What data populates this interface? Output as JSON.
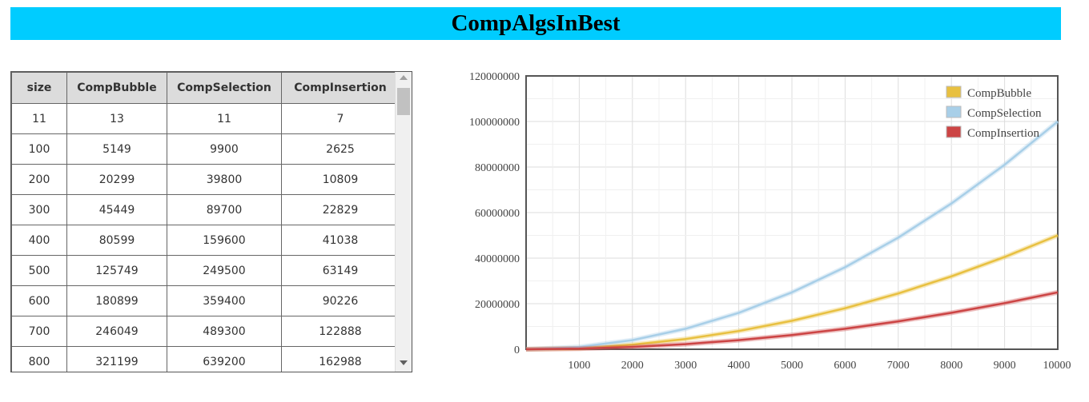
{
  "header": {
    "title": "CompAlgsInBest"
  },
  "table": {
    "columns": [
      "size",
      "CompBubble",
      "CompSelection",
      "CompInsertion"
    ],
    "rows": [
      [
        "11",
        "13",
        "11",
        "7"
      ],
      [
        "100",
        "5149",
        "9900",
        "2625"
      ],
      [
        "200",
        "20299",
        "39800",
        "10809"
      ],
      [
        "300",
        "45449",
        "89700",
        "22829"
      ],
      [
        "400",
        "80599",
        "159600",
        "41038"
      ],
      [
        "500",
        "125749",
        "249500",
        "63149"
      ],
      [
        "600",
        "180899",
        "359400",
        "90226"
      ],
      [
        "700",
        "246049",
        "489300",
        "122888"
      ],
      [
        "800",
        "321199",
        "639200",
        "162988"
      ]
    ]
  },
  "chart_data": {
    "type": "line",
    "title": "",
    "xlabel": "",
    "ylabel": "",
    "xlim": [
      0,
      10000
    ],
    "ylim": [
      0,
      120000000
    ],
    "x_ticks": [
      1000,
      2000,
      3000,
      4000,
      5000,
      6000,
      7000,
      8000,
      9000,
      10000
    ],
    "y_ticks": [
      0,
      20000000,
      40000000,
      60000000,
      80000000,
      100000000,
      120000000
    ],
    "grid": true,
    "legend_position": "top-right",
    "x": [
      0,
      1000,
      2000,
      3000,
      4000,
      5000,
      6000,
      7000,
      8000,
      9000,
      10000
    ],
    "series": [
      {
        "name": "CompBubble",
        "color": "#e8c040",
        "values": [
          0,
          500000,
          2000000,
          4500000,
          8000000,
          12500000,
          18000000,
          24500000,
          32000000,
          40500000,
          50000000
        ]
      },
      {
        "name": "CompSelection",
        "color": "#a8cfe8",
        "values": [
          0,
          1000000,
          4000000,
          9000000,
          16000000,
          25000000,
          36000000,
          49000000,
          64000000,
          81000000,
          100000000
        ]
      },
      {
        "name": "CompInsertion",
        "color": "#cc4444",
        "values": [
          0,
          250000,
          1000000,
          2250000,
          4000000,
          6250000,
          9000000,
          12250000,
          16000000,
          20250000,
          25000000
        ]
      }
    ]
  }
}
